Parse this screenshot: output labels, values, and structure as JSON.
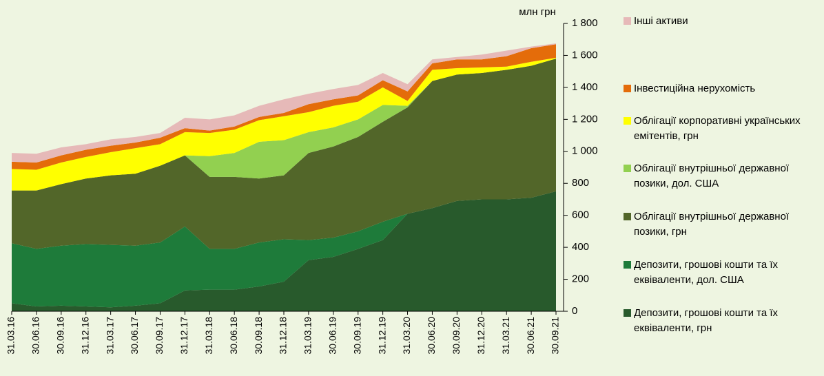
{
  "chart_data": {
    "type": "stacked-area",
    "y_axis_label": "млн грн",
    "categories": [
      "31.03.16",
      "30.06.16",
      "30.09.16",
      "31.12.16",
      "31.03.17",
      "30.06.17",
      "30.09.17",
      "31.12.17",
      "31.03.18",
      "30.06.18",
      "30.09.18",
      "31.12.18",
      "31.03.19",
      "30.06.19",
      "30.09.19",
      "31.12.19",
      "31.03.20",
      "30.06.20",
      "30.09.20",
      "31.12.20",
      "31.03.21",
      "30.06.21",
      "30.09.21"
    ],
    "series": [
      {
        "name": "Депозити, грошові кошти та їх еквіваленти, грн",
        "color": "#285a2c",
        "values": [
          50,
          30,
          35,
          30,
          25,
          35,
          50,
          130,
          135,
          135,
          155,
          185,
          320,
          340,
          390,
          445,
          610,
          645,
          690,
          700,
          700,
          710,
          750
        ]
      },
      {
        "name": "Депозити, грошові кошти та їх еквіваленти, дол. США",
        "color": "#1e7b3a",
        "values": [
          375,
          360,
          375,
          390,
          390,
          375,
          380,
          400,
          255,
          255,
          275,
          265,
          125,
          120,
          110,
          115,
          0,
          0,
          0,
          0,
          0,
          0,
          0
        ]
      },
      {
        "name": "Облігації внутрішньої державної позики, грн",
        "color": "#526629",
        "values": [
          330,
          365,
          385,
          410,
          435,
          450,
          480,
          445,
          450,
          450,
          400,
          400,
          545,
          570,
          590,
          625,
          665,
          795,
          790,
          790,
          810,
          825,
          830
        ]
      },
      {
        "name": "Облігації внутрішньої державної позики, дол. США",
        "color": "#92d050",
        "values": [
          0,
          0,
          0,
          0,
          0,
          0,
          0,
          0,
          130,
          150,
          230,
          220,
          130,
          120,
          110,
          105,
          10,
          0,
          0,
          0,
          0,
          0,
          0
        ]
      },
      {
        "name": "Облігації корпоративні українських емітентів, грн",
        "color": "#ffff00",
        "values": [
          135,
          130,
          135,
          135,
          145,
          160,
          135,
          145,
          145,
          145,
          135,
          150,
          125,
          135,
          110,
          110,
          30,
          70,
          40,
          35,
          20,
          25,
          5
        ]
      },
      {
        "name": "Інвестиційна нерухомість",
        "color": "#e46c0a",
        "values": [
          45,
          45,
          45,
          45,
          40,
          35,
          40,
          25,
          15,
          20,
          20,
          20,
          50,
          40,
          40,
          45,
          60,
          40,
          55,
          50,
          65,
          85,
          85
        ]
      },
      {
        "name": "Інші активи",
        "color": "#e6b9b8",
        "values": [
          55,
          55,
          50,
          35,
          40,
          35,
          30,
          65,
          70,
          70,
          70,
          85,
          65,
          65,
          65,
          45,
          45,
          25,
          15,
          30,
          35,
          10,
          5
        ]
      }
    ],
    "ylim": [
      0,
      1800
    ],
    "yticks": [
      0,
      200,
      400,
      600,
      800,
      {
        "value": 1000,
        "label": "1 000"
      },
      {
        "value": 1200,
        "label": "1 200"
      },
      {
        "value": 1400,
        "label": "1 400"
      },
      {
        "value": 1600,
        "label": "1 600"
      },
      {
        "value": 1800,
        "label": "1 800"
      }
    ],
    "y_axis_side": "right",
    "legend_position": "right"
  }
}
